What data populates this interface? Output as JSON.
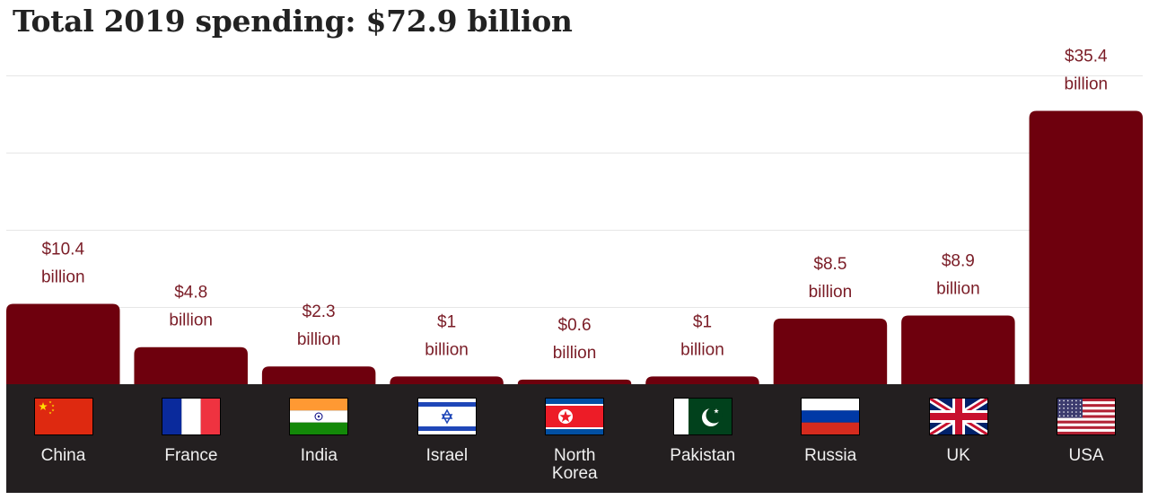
{
  "chart_data": {
    "type": "bar",
    "title": "Total 2019 spending: $72.9 billion",
    "xlabel": "",
    "ylabel": "",
    "ylim": [
      0,
      40
    ],
    "grid": true,
    "gridlines": [
      10,
      20,
      30,
      40
    ],
    "categories": [
      "China",
      "France",
      "India",
      "Israel",
      "North Korea",
      "Pakistan",
      "Russia",
      "UK",
      "USA"
    ],
    "category_lines": [
      [
        "China"
      ],
      [
        "France"
      ],
      [
        "India"
      ],
      [
        "Israel"
      ],
      [
        "North",
        "Korea"
      ],
      [
        "Pakistan"
      ],
      [
        "Russia"
      ],
      [
        "UK"
      ],
      [
        "USA"
      ]
    ],
    "values": [
      10.4,
      4.8,
      2.3,
      1,
      0.6,
      1,
      8.5,
      8.9,
      35.4
    ],
    "value_labels": [
      [
        "$10.4",
        "billion"
      ],
      [
        "$4.8",
        "billion"
      ],
      [
        "$2.3",
        "billion"
      ],
      [
        "$1",
        "billion"
      ],
      [
        "$0.6",
        "billion"
      ],
      [
        "$1",
        "billion"
      ],
      [
        "$8.5",
        "billion"
      ],
      [
        "$8.9",
        "billion"
      ],
      [
        "$35.4",
        "billion"
      ]
    ],
    "flags": [
      "china-flag",
      "france-flag",
      "india-flag",
      "israel-flag",
      "north-korea-flag",
      "pakistan-flag",
      "russia-flag",
      "uk-flag",
      "usa-flag"
    ]
  },
  "colors": {
    "bar": "#6e000d",
    "label": "#7a1c26",
    "band": "#231f20",
    "country_text": "#f0f0f0"
  }
}
